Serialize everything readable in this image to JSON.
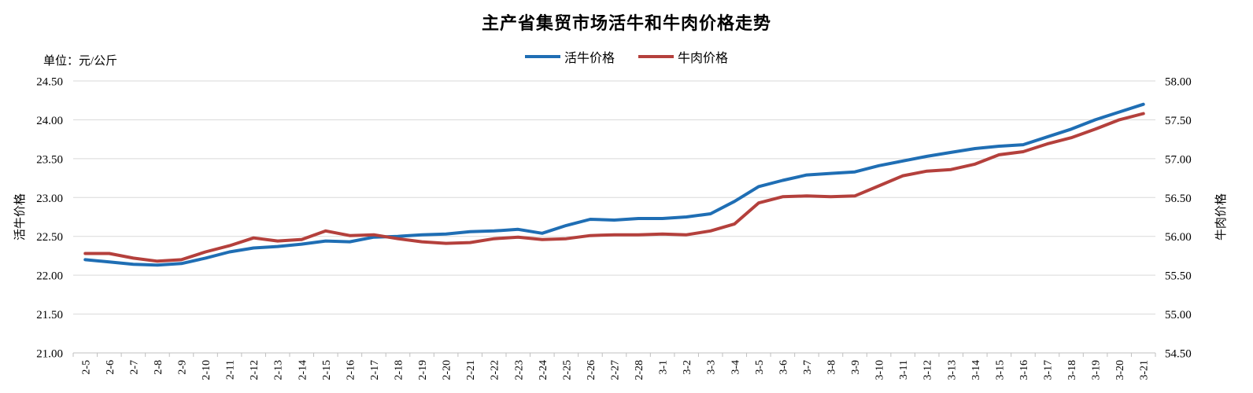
{
  "title": "主产省集贸市场活牛和牛肉价格走势",
  "unit_label": "单位：元/公斤",
  "legend": {
    "live_cattle_label": "活牛价格",
    "beef_label": "牛肉价格"
  },
  "colors": {
    "live_cattle": "#1F6EB4",
    "beef": "#B4403C",
    "gridline": "#D9D9D9",
    "axis": "#BFBFBF"
  },
  "chart_data": {
    "type": "line",
    "title": "主产省集贸市场活牛和牛肉价格走势",
    "unit": "元/公斤",
    "grid": true,
    "legend_position": "top",
    "categories": [
      "2-5",
      "2-6",
      "2-7",
      "2-8",
      "2-9",
      "2-10",
      "2-11",
      "2-12",
      "2-13",
      "2-14",
      "2-15",
      "2-16",
      "2-17",
      "2-18",
      "2-19",
      "2-20",
      "2-21",
      "2-22",
      "2-23",
      "2-24",
      "2-25",
      "2-26",
      "2-27",
      "2-28",
      "3-1",
      "3-2",
      "3-3",
      "3-4",
      "3-5",
      "3-6",
      "3-7",
      "3-8",
      "3-9",
      "3-10",
      "3-11",
      "3-12",
      "3-13",
      "3-14",
      "3-15",
      "3-16",
      "3-17",
      "3-18",
      "3-19",
      "3-20",
      "3-21"
    ],
    "series": [
      {
        "key": "live-cattle",
        "name": "活牛价格",
        "axis": "left",
        "color": "#1F6EB4",
        "values": [
          22.2,
          22.17,
          22.14,
          22.13,
          22.15,
          22.22,
          22.3,
          22.35,
          22.37,
          22.4,
          22.44,
          22.43,
          22.49,
          22.5,
          22.52,
          22.53,
          22.56,
          22.57,
          22.59,
          22.54,
          22.64,
          22.72,
          22.71,
          22.73,
          22.73,
          22.75,
          22.79,
          22.95,
          23.14,
          23.22,
          23.29,
          23.31,
          23.33,
          23.41,
          23.47,
          23.53,
          23.58,
          23.63,
          23.66,
          23.68,
          23.78,
          23.88,
          24.0,
          24.1,
          24.2
        ]
      },
      {
        "key": "beef",
        "name": "牛肉价格",
        "axis": "right",
        "color": "#B4403C",
        "values": [
          55.78,
          55.78,
          55.72,
          55.68,
          55.7,
          55.8,
          55.88,
          55.98,
          55.94,
          55.96,
          56.07,
          56.01,
          56.02,
          55.97,
          55.93,
          55.91,
          55.92,
          55.97,
          55.99,
          55.96,
          55.97,
          56.01,
          56.02,
          56.02,
          56.03,
          56.02,
          56.07,
          56.16,
          56.43,
          56.51,
          56.52,
          56.51,
          56.52,
          56.65,
          56.78,
          56.84,
          56.86,
          56.93,
          57.05,
          57.09,
          57.19,
          57.27,
          57.38,
          57.5,
          57.58
        ]
      }
    ],
    "left_axis": {
      "label": "活牛价格",
      "min": 21.0,
      "max": 24.5,
      "tick_labels": [
        "24.50",
        "24.00",
        "23.50",
        "23.00",
        "22.50",
        "22.00",
        "21.50",
        "21.00"
      ]
    },
    "right_axis": {
      "label": "牛肉价格",
      "min": 54.5,
      "max": 58.0,
      "tick_labels": [
        "58.00",
        "57.50",
        "57.00",
        "56.50",
        "56.00",
        "55.50",
        "55.00",
        "54.50"
      ]
    }
  }
}
